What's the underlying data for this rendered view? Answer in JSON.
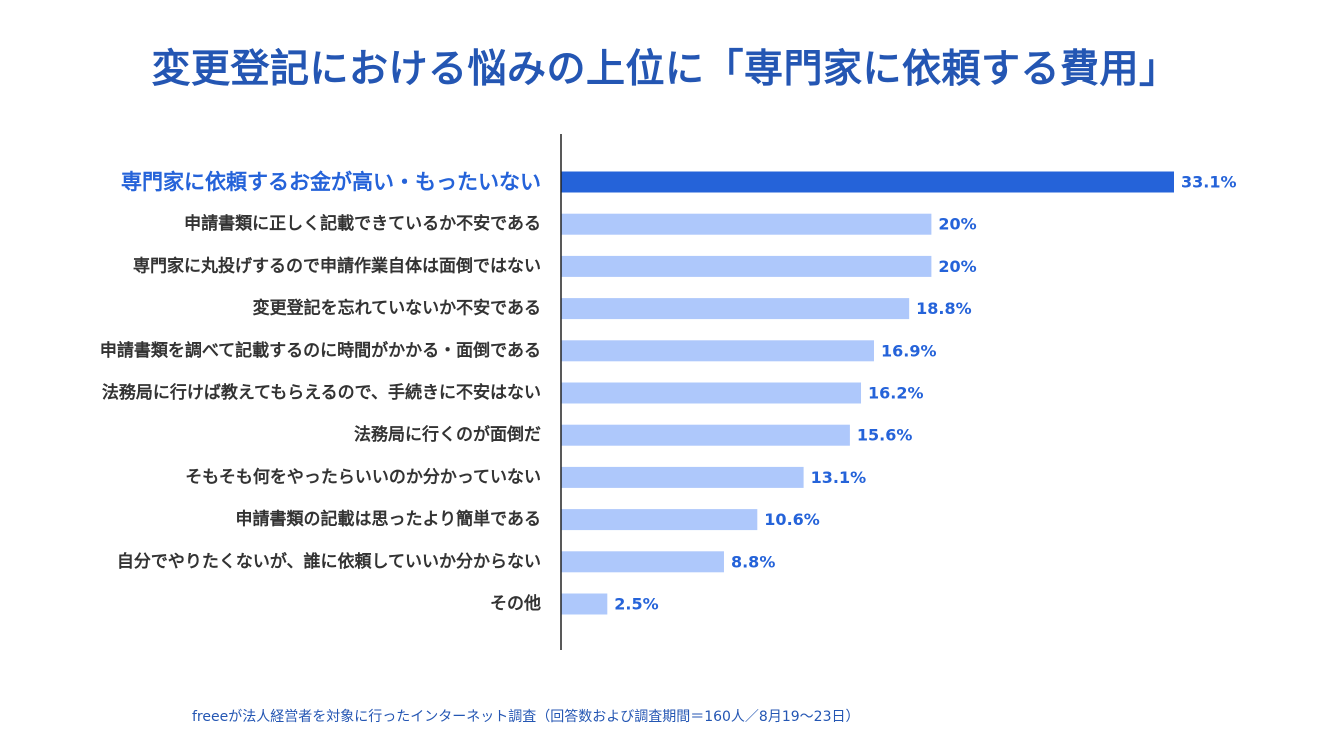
{
  "title": "変更登記における悩みの上位に「専門家に依頼する費用」",
  "footnote": "freeeが法人経営者を対象に行ったインターネット調査（回答数および調査期間＝160人／8月19〜23日）",
  "colors": {
    "highlight": "#2563d9",
    "bar": "#aec8fb",
    "axis": "#222222",
    "title": "#2456b3"
  },
  "chart_data": {
    "type": "bar",
    "orientation": "horizontal",
    "title": "変更登記における悩みの上位に「専門家に依頼する費用」",
    "xlabel": "",
    "ylabel": "",
    "xlim": [
      0,
      33.1
    ],
    "unit": "%",
    "highlight_index": 0,
    "categories": [
      "専門家に依頼するお金が高い・もったいない",
      "申請書類に正しく記載できているか不安である",
      "専門家に丸投げするので申請作業自体は面倒ではない",
      "変更登記を忘れていないか不安である",
      "申請書類を調べて記載するのに時間がかかる・面倒である",
      "法務局に行けば教えてもらえるので、手続きに不安はない",
      "法務局に行くのが面倒だ",
      "そもそも何をやったらいいのか分かっていない",
      "申請書類の記載は思ったより簡単である",
      "自分でやりたくないが、誰に依頼していいか分からない",
      "その他"
    ],
    "values": [
      33.1,
      20,
      20,
      18.8,
      16.9,
      16.2,
      15.6,
      13.1,
      10.6,
      8.8,
      2.5
    ],
    "value_labels": [
      "33.1%",
      "20%",
      "20%",
      "18.8%",
      "16.9%",
      "16.2%",
      "15.6%",
      "13.1%",
      "10.6%",
      "8.8%",
      "2.5%"
    ]
  }
}
